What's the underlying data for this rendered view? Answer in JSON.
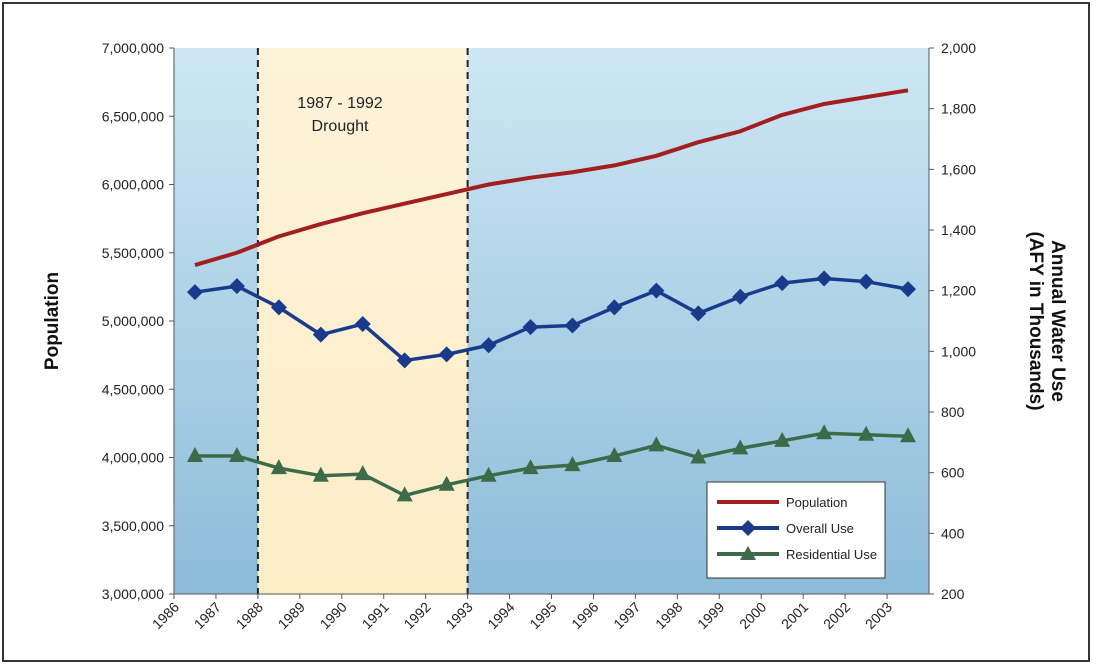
{
  "chart_data": {
    "type": "line",
    "x": [
      "1986",
      "1987",
      "1988",
      "1989",
      "1990",
      "1991",
      "1992",
      "1993",
      "1994",
      "1995",
      "1996",
      "1997",
      "1998",
      "1999",
      "2000",
      "2001",
      "2002",
      "2003"
    ],
    "ylabel": "Population",
    "y2label_line1": "Annual Water Use",
    "y2label_line2": "(AFY in Thousands)",
    "ylim": [
      3000000,
      7000000
    ],
    "y2lim": [
      200,
      2000
    ],
    "yticks": [
      "3,000,000",
      "3,500,000",
      "4,000,000",
      "4,500,000",
      "5,000,000",
      "5,500,000",
      "6,000,000",
      "6,500,000",
      "7,000,000"
    ],
    "y2ticks": [
      "200",
      "400",
      "600",
      "800",
      "1,000",
      "1,200",
      "1,400",
      "1,600",
      "1,800",
      "2,000"
    ],
    "annotation": {
      "line1": "1987 - 1992",
      "line2": "Drought",
      "start": "1987",
      "end": "1992"
    },
    "series": [
      {
        "name": "Population",
        "axis": "left",
        "color": "#a31f1f",
        "marker": "none",
        "values": [
          5410000,
          5500000,
          5620000,
          5710000,
          5790000,
          5860000,
          5930000,
          6000000,
          6050000,
          6090000,
          6140000,
          6210000,
          6310000,
          6390000,
          6510000,
          6590000,
          6640000,
          6690000
        ]
      },
      {
        "name": "Overall Use",
        "axis": "right",
        "color": "#1a3a8c",
        "marker": "diamond",
        "values": [
          1195,
          1215,
          1145,
          1055,
          1090,
          970,
          990,
          1020,
          1080,
          1085,
          1145,
          1200,
          1125,
          1180,
          1225,
          1240,
          1230,
          1205
        ]
      },
      {
        "name": "Residential Use",
        "axis": "right",
        "color": "#3d6b4a",
        "marker": "triangle",
        "values": [
          655,
          655,
          615,
          590,
          595,
          525,
          560,
          590,
          615,
          625,
          655,
          690,
          650,
          680,
          705,
          730,
          725,
          720
        ]
      }
    ],
    "legend_position": "bottom-right",
    "grid": false
  }
}
